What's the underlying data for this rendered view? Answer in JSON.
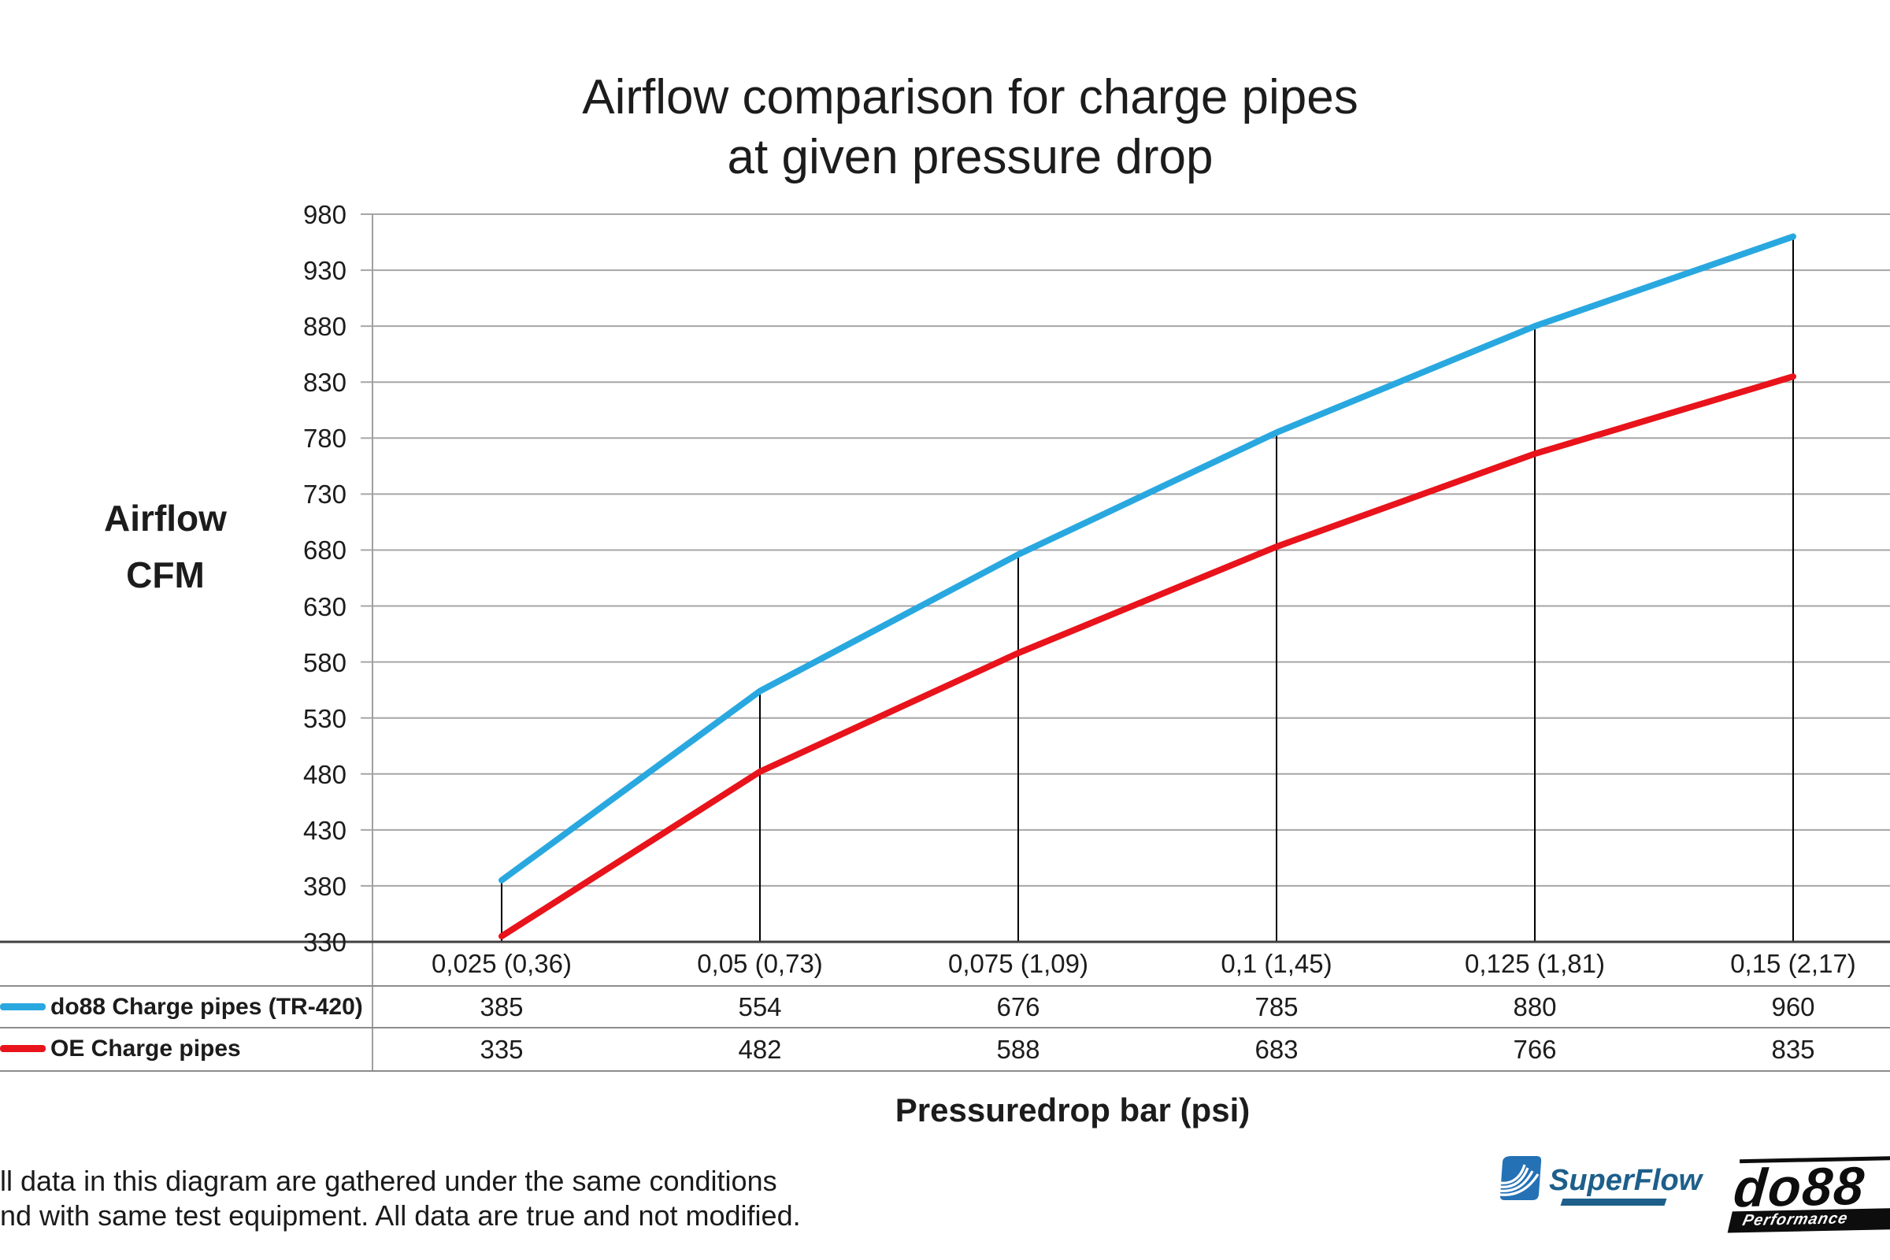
{
  "title": {
    "line1": "Airflow comparison for charge pipes",
    "line2": "at given pressure drop"
  },
  "y_axis": {
    "label_line1": "Airflow",
    "label_line2": "CFM"
  },
  "x_axis": {
    "title": "Pressuredrop bar (psi)"
  },
  "chart_data": {
    "type": "line",
    "title": "Airflow comparison for charge pipes at given pressure drop",
    "xlabel": "Pressuredrop bar (psi)",
    "ylabel": "Airflow CFM",
    "categories": [
      "0,025 (0,36)",
      "0,05 (0,73)",
      "0,075 (1,09)",
      "0,1 (1,45)",
      "0,125 (1,81)",
      "0,15 (2,17)"
    ],
    "series": [
      {
        "name": "do88 Charge pipes (TR-420)",
        "color": "#29a8e0",
        "values": [
          385,
          554,
          676,
          785,
          880,
          960
        ]
      },
      {
        "name": "OE Charge pipes",
        "color": "#e8131b",
        "values": [
          335,
          482,
          588,
          683,
          766,
          835
        ]
      }
    ],
    "ylim": [
      330,
      980
    ],
    "yticks": [
      330,
      380,
      430,
      480,
      530,
      580,
      630,
      680,
      730,
      780,
      830,
      880,
      930,
      980
    ],
    "grid": true,
    "droplines": true,
    "legend_position": "table-left"
  },
  "footer": {
    "line1": "ll data in this diagram are gathered under the same conditions",
    "line2": "nd with same test equipment. All data are true and not modified."
  },
  "logos": {
    "superflow": {
      "text": "SuperFlow"
    },
    "do88": {
      "text": "do88",
      "subtext": "Performance"
    }
  },
  "colors": {
    "gridline": "#a6a6a6",
    "axis": "#a0a0a0",
    "baseline": "#404040",
    "table_border": "#8c8c8c",
    "dropline": "#000000"
  }
}
